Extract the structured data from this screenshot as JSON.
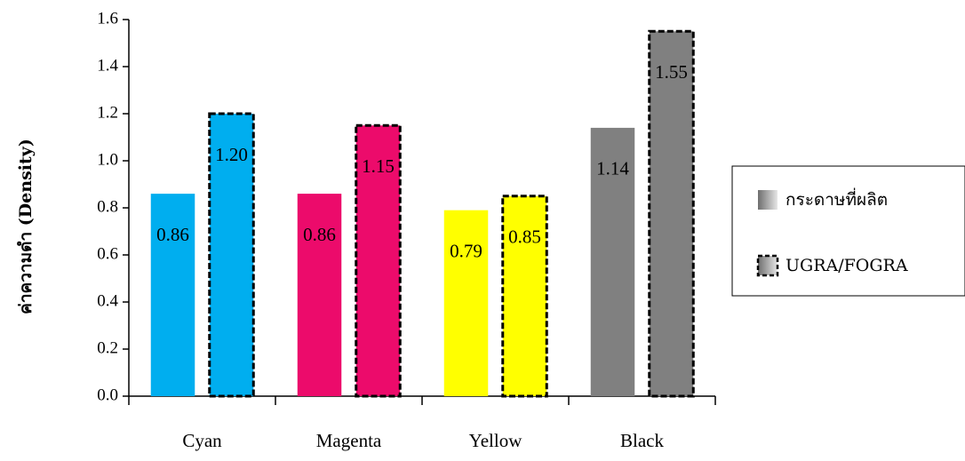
{
  "chart_data": {
    "type": "bar",
    "title": "",
    "xlabel": "",
    "ylabel": "ค่าความดำ (Density)",
    "ylim": [
      0,
      1.6
    ],
    "yticks": [
      "0.0",
      "0.2",
      "0.4",
      "0.6",
      "0.8",
      "1.0",
      "1.2",
      "1.4",
      "1.6"
    ],
    "categories": [
      "Cyan",
      "Magenta",
      "Yellow",
      "Black"
    ],
    "bar_colors": [
      "#00AEEF",
      "#EC0B6B",
      "#FFFF00",
      "#808080"
    ],
    "series": [
      {
        "name": "กระดาษที่ผลิต",
        "values": [
          0.86,
          0.86,
          0.79,
          1.14
        ],
        "labels": [
          "0.86",
          "0.86",
          "0.79",
          "1.14"
        ],
        "outline": "none"
      },
      {
        "name": "UGRA/FOGRA",
        "values": [
          1.2,
          1.15,
          0.85,
          1.55
        ],
        "labels": [
          "1.20",
          "1.15",
          "0.85",
          "1.55"
        ],
        "outline": "dashed"
      }
    ],
    "grid": false,
    "legend_position": "right"
  }
}
